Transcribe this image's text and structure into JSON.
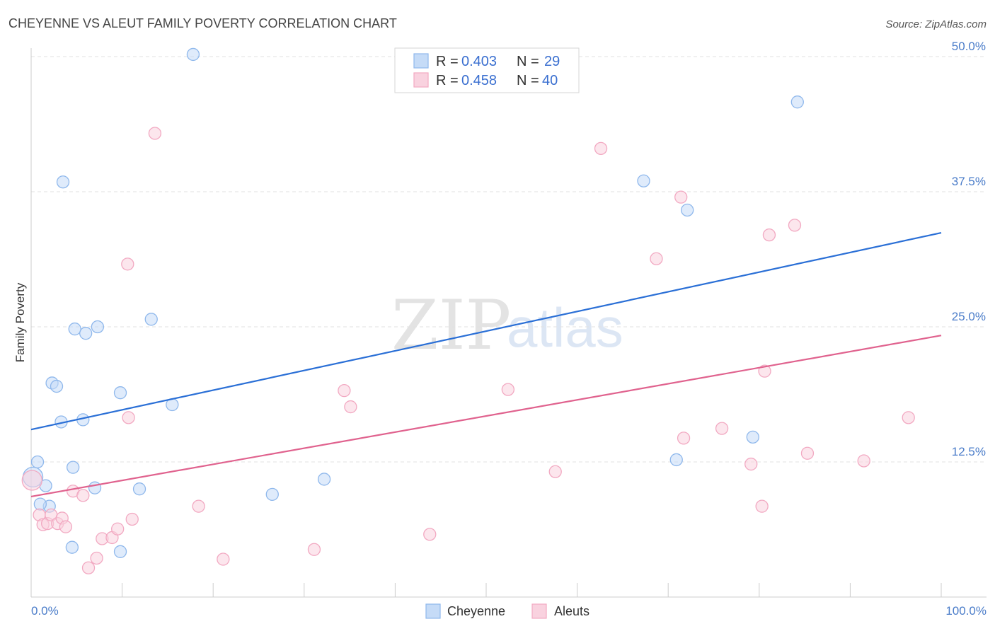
{
  "chart_data": {
    "type": "scatter",
    "title": "CHEYENNE VS ALEUT FAMILY POVERTY CORRELATION CHART",
    "source": "Source: ZipAtlas.com",
    "ylabel": "Family Poverty",
    "xlabel": "",
    "xlim": [
      0,
      100
    ],
    "ylim": [
      0,
      50
    ],
    "x_tick_labels": {
      "min": "0.0%",
      "max": "100.0%"
    },
    "y_ticks": [
      {
        "value": 12.5,
        "label": "12.5%"
      },
      {
        "value": 25.0,
        "label": "25.0%"
      },
      {
        "value": 37.5,
        "label": "37.5%"
      },
      {
        "value": 50.0,
        "label": "50.0%"
      }
    ],
    "watermark": {
      "part1": "ZIP",
      "part2": "atlas"
    },
    "legend": [
      {
        "series": "Cheyenne",
        "r_label": "R =",
        "r_value": "0.403",
        "n_label": "N =",
        "n_value": "29"
      },
      {
        "series": "Aleuts",
        "r_label": "R =",
        "r_value": "0.458",
        "n_label": "N =",
        "n_value": "40"
      }
    ],
    "series": [
      {
        "name": "Cheyenne",
        "color": "#8fb8ec",
        "fill": "#c5dbf7",
        "line_color": "#2a6fd6",
        "trend": {
          "x": [
            0,
            100
          ],
          "y": [
            15.5,
            33.7
          ]
        },
        "points": [
          [
            0.2,
            11.1,
            2
          ],
          [
            0.7,
            12.5,
            1
          ],
          [
            1.6,
            10.3,
            1
          ],
          [
            2.0,
            8.4,
            1
          ],
          [
            1.0,
            8.6,
            1
          ],
          [
            2.3,
            19.8,
            1
          ],
          [
            2.8,
            19.5,
            1
          ],
          [
            3.3,
            16.2,
            1
          ],
          [
            3.5,
            38.4,
            1
          ],
          [
            4.6,
            12.0,
            1
          ],
          [
            4.5,
            4.6,
            1
          ],
          [
            4.8,
            24.8,
            1
          ],
          [
            5.7,
            16.4,
            1
          ],
          [
            6.0,
            24.4,
            1
          ],
          [
            7.0,
            10.1,
            1
          ],
          [
            7.3,
            25.0,
            1
          ],
          [
            9.8,
            4.2,
            1
          ],
          [
            9.8,
            18.9,
            1
          ],
          [
            11.9,
            10.0,
            1
          ],
          [
            13.2,
            25.7,
            1
          ],
          [
            15.5,
            17.8,
            1
          ],
          [
            17.8,
            50.2,
            1
          ],
          [
            26.5,
            9.5,
            1
          ],
          [
            32.2,
            10.9,
            1
          ],
          [
            67.3,
            38.5,
            1
          ],
          [
            70.9,
            12.7,
            1
          ],
          [
            72.1,
            35.8,
            1
          ],
          [
            79.3,
            14.8,
            1
          ],
          [
            84.2,
            45.8,
            1
          ]
        ]
      },
      {
        "name": "Aleuts",
        "color": "#f2a9c2",
        "fill": "#f9d2df",
        "line_color": "#e0628e",
        "trend": {
          "x": [
            0,
            100
          ],
          "y": [
            9.3,
            24.2
          ]
        },
        "points": [
          [
            0.1,
            10.8,
            2
          ],
          [
            0.9,
            7.6,
            1
          ],
          [
            1.3,
            6.7,
            1
          ],
          [
            1.8,
            6.8,
            1
          ],
          [
            2.2,
            7.6,
            1
          ],
          [
            2.9,
            6.8,
            1
          ],
          [
            3.4,
            7.3,
            1
          ],
          [
            3.8,
            6.5,
            1
          ],
          [
            4.6,
            9.8,
            1
          ],
          [
            5.7,
            9.4,
            1
          ],
          [
            6.3,
            2.7,
            1
          ],
          [
            7.2,
            3.6,
            1
          ],
          [
            7.8,
            5.4,
            1
          ],
          [
            8.9,
            5.5,
            1
          ],
          [
            9.5,
            6.3,
            1
          ],
          [
            10.6,
            30.8,
            1
          ],
          [
            10.7,
            16.6,
            1
          ],
          [
            11.1,
            7.2,
            1
          ],
          [
            13.6,
            42.9,
            1
          ],
          [
            18.4,
            8.4,
            1
          ],
          [
            21.1,
            3.5,
            1
          ],
          [
            31.1,
            4.4,
            1
          ],
          [
            34.4,
            19.1,
            1
          ],
          [
            35.1,
            17.6,
            1
          ],
          [
            43.8,
            5.8,
            1
          ],
          [
            52.4,
            19.2,
            1
          ],
          [
            57.6,
            11.6,
            1
          ],
          [
            62.6,
            41.5,
            1
          ],
          [
            68.7,
            31.3,
            1
          ],
          [
            71.4,
            37.0,
            1
          ],
          [
            71.7,
            14.7,
            1
          ],
          [
            75.9,
            15.6,
            1
          ],
          [
            79.1,
            12.3,
            1
          ],
          [
            80.3,
            8.4,
            1
          ],
          [
            80.6,
            20.9,
            1
          ],
          [
            81.1,
            33.5,
            1
          ],
          [
            83.9,
            34.4,
            1
          ],
          [
            85.3,
            13.3,
            1
          ],
          [
            91.5,
            12.6,
            1
          ],
          [
            96.4,
            16.6,
            1
          ]
        ]
      }
    ]
  }
}
